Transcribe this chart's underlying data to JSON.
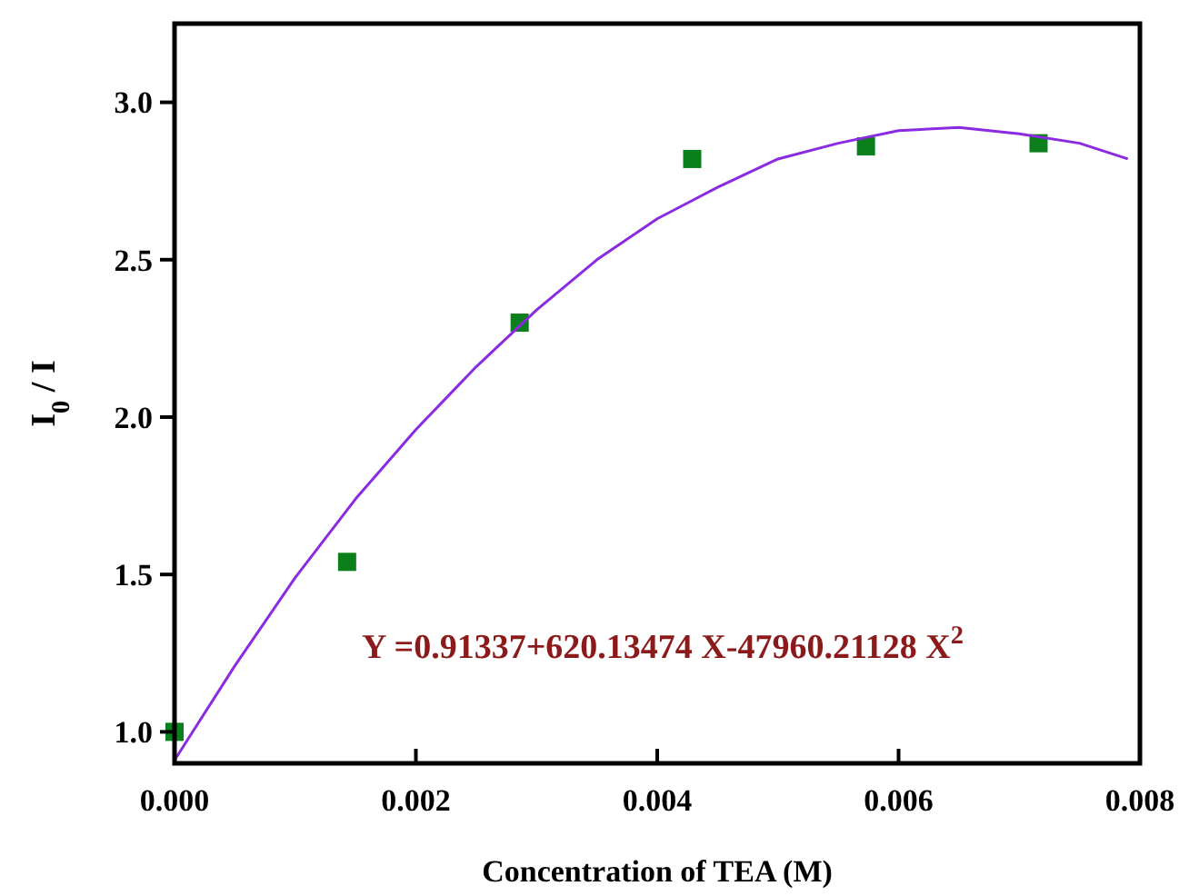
{
  "chart_data": {
    "type": "scatter",
    "xlabel": "Concentration of TEA (M)",
    "ylabel": "I$_{0}$ / I",
    "xlim": [
      0,
      0.008
    ],
    "xticks": [
      {
        "value": 0,
        "label": "0.000"
      },
      {
        "value": 0.002,
        "label": "0.002"
      },
      {
        "value": 0.004,
        "label": "0.004"
      },
      {
        "value": 0.006,
        "label": "0.006"
      },
      {
        "value": 0.008,
        "label": "0.008"
      }
    ],
    "ylim": [
      0.9,
      3.25
    ],
    "yticks": [
      {
        "value": 1,
        "label": "1.0"
      },
      {
        "value": 1.5,
        "label": "1.5"
      },
      {
        "value": 2,
        "label": "2.0"
      },
      {
        "value": 2.5,
        "label": "2.5"
      },
      {
        "value": 3,
        "label": "3.0"
      }
    ],
    "grid": false,
    "series": [
      {
        "color": "#0b7f1c",
        "marker": "square",
        "x": [
          0,
          0.00143,
          0.00286,
          0.00429,
          0.00573,
          0.00716
        ],
        "values": [
          1.0,
          1.54,
          2.3,
          2.82,
          2.86,
          2.87
        ]
      },
      {
        "type": "line",
        "color": "#8a2be2",
        "marker": "none",
        "line_style": "solid",
        "x": [
          0,
          0.0005,
          0.001,
          0.0015,
          0.002,
          0.0025,
          0.003,
          0.0035,
          0.004,
          0.0045,
          0.005,
          0.0055,
          0.006,
          0.0065,
          0.007,
          0.0075,
          0.0079
        ],
        "values": [
          0.91,
          1.21,
          1.49,
          1.74,
          1.96,
          2.16,
          2.34,
          2.5,
          2.63,
          2.73,
          2.82,
          2.87,
          2.91,
          2.92,
          2.9,
          2.87,
          2.82
        ]
      }
    ],
    "annotations": [
      "Y =0.91337+620.13474 X-47960.21128 X$^{2}$"
    ]
  }
}
